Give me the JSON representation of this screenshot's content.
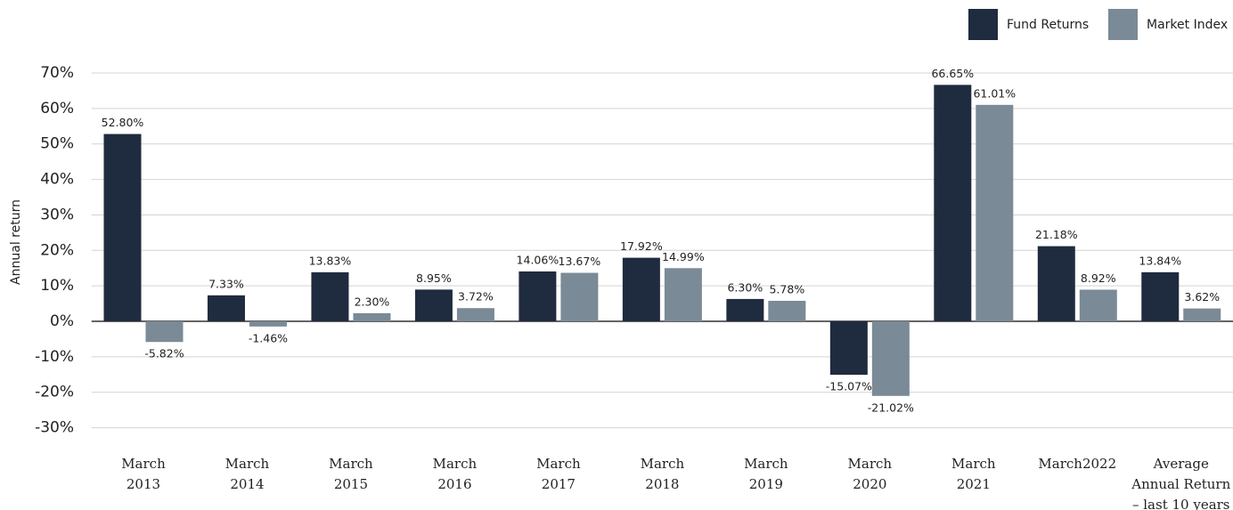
{
  "chart_data": {
    "type": "bar",
    "y_label": "Annual return",
    "categories": [
      "March\n2013",
      "March\n2014",
      "March\n2015",
      "March\n2016",
      "March\n2017",
      "March\n2018",
      "March\n2019",
      "March\n2020",
      "March\n2021",
      "March2022",
      "Average\nAnnual Return\n– last 10 years"
    ],
    "series": [
      {
        "name": "Fund Returns",
        "color": "#1f2b3e",
        "values": [
          52.8,
          7.33,
          13.83,
          8.95,
          14.06,
          17.92,
          6.3,
          -15.07,
          66.65,
          21.18,
          13.84
        ],
        "value_labels": [
          "52.80%",
          "7.33%",
          "13.83%",
          "8.95%",
          "14.06%",
          "17.92%",
          "6.30%",
          "-15.07%",
          "66.65%",
          "21.18%",
          "13.84%"
        ]
      },
      {
        "name": "Market Index",
        "color": "#7a8a96",
        "values": [
          -5.82,
          -1.46,
          2.3,
          3.72,
          13.67,
          14.99,
          5.78,
          -21.02,
          61.01,
          8.92,
          3.62
        ],
        "value_labels": [
          "-5.82%",
          "-1.46%",
          "2.30%",
          "3.72%",
          "13.67%",
          "14.99%",
          "5.78%",
          "-21.02%",
          "61.01%",
          "8.92%",
          "3.62%"
        ]
      }
    ],
    "ylim": [
      -30,
      70
    ],
    "yticks": [
      {
        "value": -30,
        "label": "-30%"
      },
      {
        "value": -20,
        "label": "-20%"
      },
      {
        "value": -10,
        "label": "-10%"
      },
      {
        "value": 0,
        "label": "0%"
      },
      {
        "value": 10,
        "label": "10%"
      },
      {
        "value": 20,
        "label": "20%"
      },
      {
        "value": 30,
        "label": "30%"
      },
      {
        "value": 40,
        "label": "40%"
      },
      {
        "value": 50,
        "label": "50%"
      },
      {
        "value": 60,
        "label": "60%"
      },
      {
        "value": 70,
        "label": "70%"
      }
    ],
    "grid": true,
    "legend": "top-right"
  }
}
